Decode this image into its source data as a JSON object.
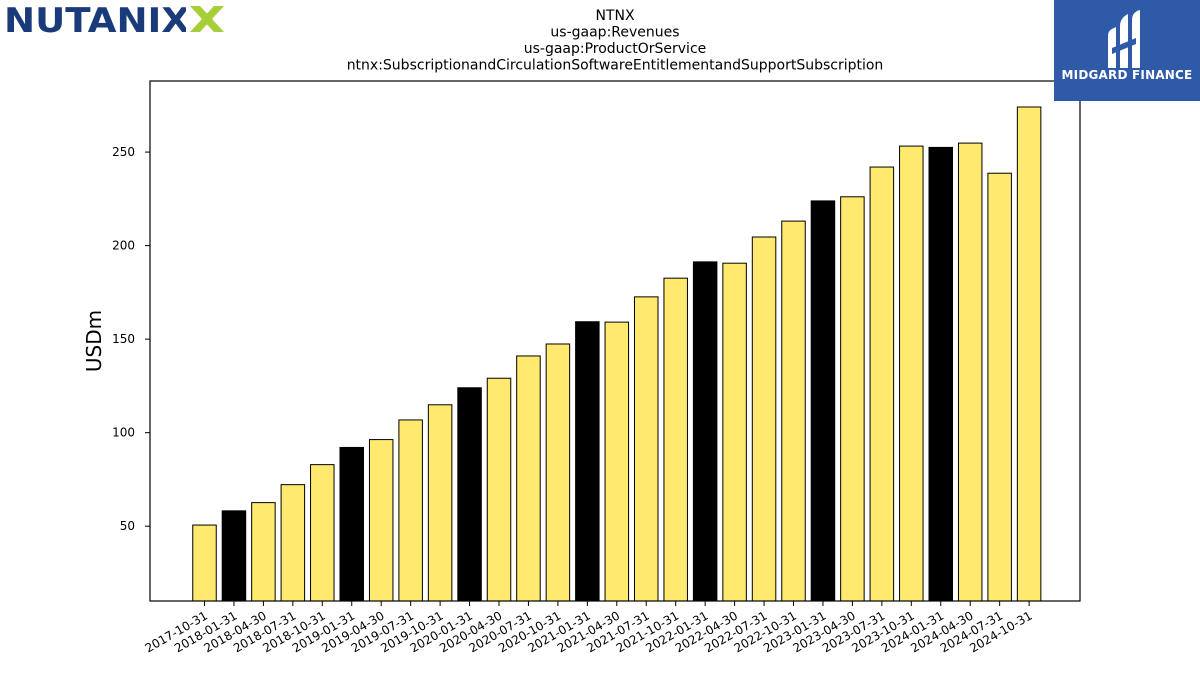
{
  "brand": {
    "left_logo_text": "NUTANIX",
    "right_logo_text": "MIDGARD FINANCE",
    "right_logo_bg": "#2f5aa8",
    "nutanix_blue": "#1a3a7a",
    "nutanix_green": "#a6ce39"
  },
  "chart_data": {
    "type": "bar",
    "title_lines": [
      "NTNX",
      "us-gaap:Revenues",
      "us-gaap:ProductOrService",
      "ntnx:SubscriptionandCirculationSoftwareEntitlementandSupportSubscription"
    ],
    "xlabel": "",
    "ylabel": "USDm",
    "ylim": [
      10,
      288
    ],
    "yticks": [
      50,
      100,
      150,
      200,
      250
    ],
    "grid": false,
    "legend": "none",
    "colors": {
      "default": "#ffe96e",
      "highlight": "#000000",
      "edge": "#000000"
    },
    "categories": [
      "2017-10-31",
      "2018-01-31",
      "2018-04-30",
      "2018-07-31",
      "2018-10-31",
      "2019-01-31",
      "2019-04-30",
      "2019-07-31",
      "2019-10-31",
      "2020-01-31",
      "2020-04-30",
      "2020-07-31",
      "2020-10-31",
      "2021-01-31",
      "2021-04-30",
      "2021-07-31",
      "2021-10-31",
      "2022-01-31",
      "2022-04-30",
      "2022-07-31",
      "2022-10-31",
      "2023-01-31",
      "2023-04-30",
      "2023-07-31",
      "2023-10-31",
      "2024-01-31",
      "2024-04-30",
      "2024-07-31",
      "2024-10-31"
    ],
    "values": [
      50.6,
      58.2,
      62.6,
      72.2,
      82.9,
      92.1,
      96.3,
      106.8,
      114.9,
      124.0,
      129.1,
      141.0,
      147.4,
      159.3,
      159.1,
      172.6,
      182.6,
      191.3,
      190.6,
      204.6,
      213.1,
      223.9,
      226.1,
      242.0,
      253.2,
      252.5,
      254.8,
      238.7,
      274.1
    ],
    "highlight": [
      false,
      true,
      false,
      false,
      false,
      true,
      false,
      false,
      false,
      true,
      false,
      false,
      false,
      true,
      false,
      false,
      false,
      true,
      false,
      false,
      false,
      true,
      false,
      false,
      false,
      true,
      false,
      false,
      false
    ]
  }
}
